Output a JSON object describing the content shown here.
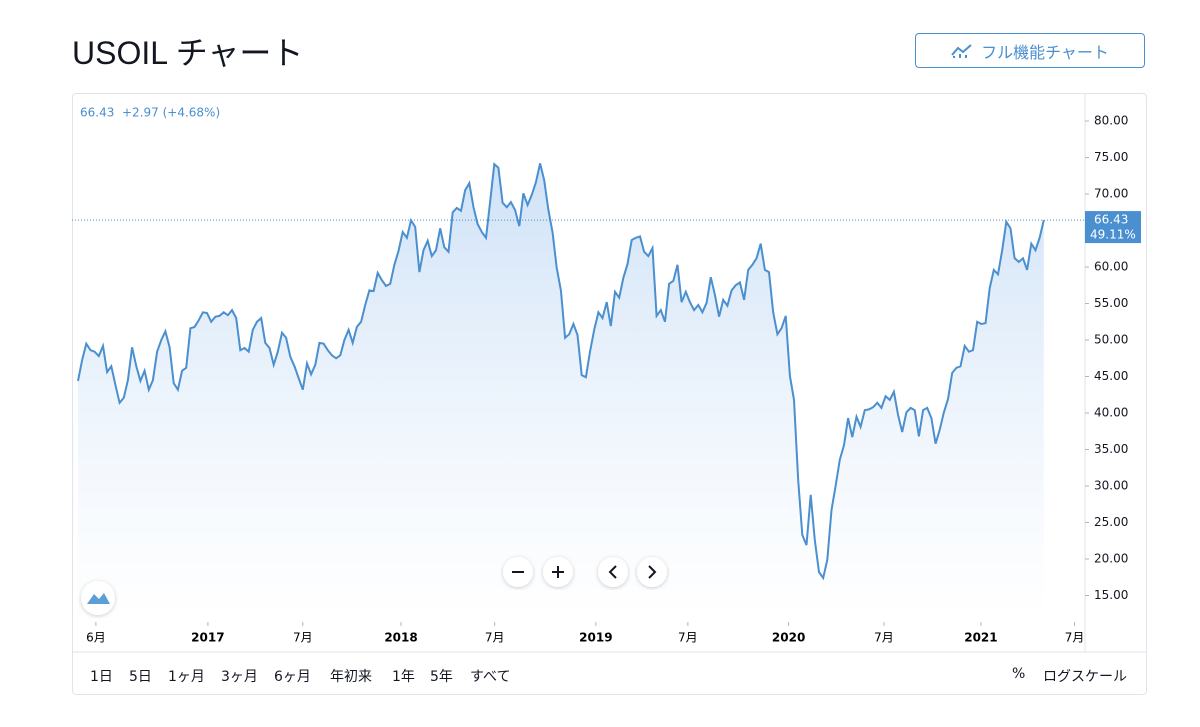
{
  "header": {
    "title": "USOIL チャート",
    "full_chart_button": "フル機能チャート"
  },
  "chart_data": {
    "type": "line",
    "quote": {
      "last": "66.43",
      "change": "+2.97 (+4.68%)"
    },
    "price_tag": {
      "price": "66.43",
      "percent": "49.11%"
    },
    "series": [
      {
        "name": "USOIL",
        "color": "#4a8fcf",
        "values": [
          44.4,
          47.3,
          49.5,
          48.6,
          48.4,
          47.8,
          49.2,
          45.6,
          46.4,
          43.8,
          41.4,
          42.1,
          44.5,
          49.0,
          46.4,
          44.4,
          45.8,
          43.2,
          44.5,
          48.4,
          50.0,
          51.2,
          49.0,
          44.1,
          43.2,
          45.8,
          46.2,
          51.6,
          51.8,
          52.7,
          53.8,
          53.7,
          52.5,
          53.2,
          53.3,
          53.8,
          53.4,
          54.1,
          53.0,
          48.6,
          48.9,
          48.4,
          51.4,
          52.5,
          53.0,
          49.6,
          48.9,
          46.6,
          48.4,
          51.0,
          50.3,
          47.7,
          46.4,
          44.8,
          43.2,
          46.8,
          45.3,
          46.6,
          49.6,
          49.5,
          48.6,
          47.9,
          47.5,
          47.9,
          50.0,
          51.4,
          49.6,
          51.8,
          52.5,
          54.8,
          56.8,
          56.7,
          59.2,
          58.2,
          57.4,
          57.7,
          60.3,
          62.2,
          64.8,
          64.0,
          66.4,
          65.5,
          59.3,
          62.3,
          63.6,
          61.5,
          62.3,
          65.3,
          62.7,
          62.1,
          67.5,
          68.1,
          67.7,
          70.5,
          71.5,
          68.2,
          65.9,
          64.8,
          64.0,
          68.9,
          74.1,
          73.6,
          68.8,
          68.2,
          68.9,
          67.8,
          65.6,
          70.1,
          68.5,
          69.9,
          71.6,
          74.2,
          71.9,
          67.8,
          64.7,
          59.9,
          56.8,
          50.3,
          50.8,
          52.2,
          50.7,
          45.2,
          44.9,
          48.4,
          51.4,
          53.8,
          53.0,
          55.2,
          51.9,
          56.6,
          55.8,
          58.5,
          60.4,
          63.7,
          64.0,
          64.2,
          62.1,
          61.5,
          62.6,
          53.3,
          54.1,
          52.5,
          57.7,
          58.1,
          60.3,
          55.2,
          56.6,
          55.2,
          54.1,
          54.8,
          53.8,
          55.1,
          58.6,
          56.2,
          53.2,
          55.5,
          54.7,
          56.8,
          57.5,
          57.9,
          55.5,
          59.6,
          60.3,
          61.2,
          63.2,
          59.6,
          59.3,
          53.8,
          50.8,
          51.6,
          53.3,
          45.1,
          41.8,
          30.8,
          23.3,
          21.9,
          28.8,
          22.6,
          18.2,
          17.4,
          19.9,
          26.7,
          30.0,
          33.6,
          35.6,
          39.3,
          36.7,
          39.5,
          38.1,
          40.4,
          40.5,
          40.8,
          41.4,
          40.7,
          42.3,
          41.8,
          42.9,
          39.7,
          37.4,
          40.1,
          40.7,
          40.4,
          36.8,
          40.4,
          40.7,
          39.3,
          35.8,
          37.7,
          40.1,
          41.9,
          45.5,
          46.2,
          46.4,
          49.2,
          48.4,
          48.6,
          52.5,
          52.2,
          52.3,
          57.1,
          59.6,
          59.0,
          62.3,
          66.2,
          65.3,
          61.2,
          60.7,
          61.2,
          59.6,
          63.2,
          62.3,
          64.0,
          66.43
        ]
      }
    ],
    "xlim": [
      -1.44,
      241.9
    ],
    "xticks": [
      {
        "value": 4.3,
        "label": "6月"
      },
      {
        "value": 31.2,
        "label": "2017"
      },
      {
        "value": 54.0,
        "label": "7月"
      },
      {
        "value": 77.6,
        "label": "2018"
      },
      {
        "value": 100.1,
        "label": "7月"
      },
      {
        "value": 124.4,
        "label": "2019"
      },
      {
        "value": 146.5,
        "label": "7月"
      },
      {
        "value": 170.7,
        "label": "2020"
      },
      {
        "value": 193.6,
        "label": "7月"
      },
      {
        "value": 216.9,
        "label": "2021"
      },
      {
        "value": 239.4,
        "label": "7月"
      }
    ],
    "ylim": [
      11.37,
      83.84
    ],
    "yticks": [
      {
        "value": 15,
        "label": "15.00"
      },
      {
        "value": 20,
        "label": "20.00"
      },
      {
        "value": 25,
        "label": "25.00"
      },
      {
        "value": 30,
        "label": "30.00"
      },
      {
        "value": 35,
        "label": "35.00"
      },
      {
        "value": 40,
        "label": "40.00"
      },
      {
        "value": 45,
        "label": "45.00"
      },
      {
        "value": 50,
        "label": "50.00"
      },
      {
        "value": 55,
        "label": "55.00"
      },
      {
        "value": 60,
        "label": "60.00"
      },
      {
        "value": 65,
        "label": "65.00"
      },
      {
        "value": 70,
        "label": "70.00"
      },
      {
        "value": 75,
        "label": "75.00"
      },
      {
        "value": 80,
        "label": "80.00"
      }
    ]
  },
  "toolbar": {
    "ranges": [
      "1日",
      "5日",
      "1ヶ月",
      "3ヶ月",
      "6ヶ月",
      "年初来",
      "1年",
      "5年",
      "すべて"
    ],
    "percent": "%",
    "log_scale": "ログスケール"
  }
}
